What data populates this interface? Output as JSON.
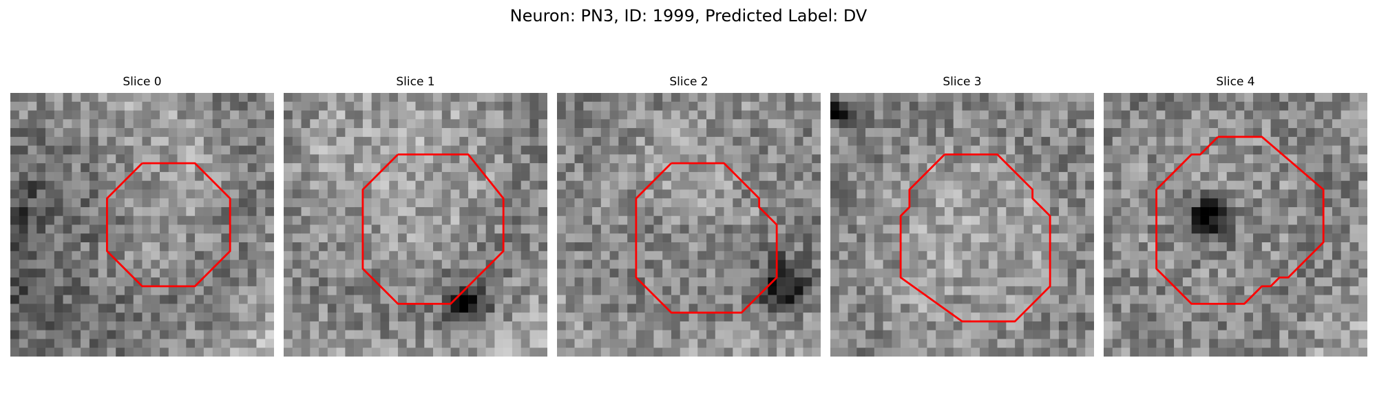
{
  "figure": {
    "title": "Neuron: PN3, ID: 1999, Predicted Label: DV"
  },
  "outline_color": "#ff0000",
  "slices": [
    {
      "label": "Slice 0"
    },
    {
      "label": "Slice 1"
    },
    {
      "label": "Slice 2"
    },
    {
      "label": "Slice 3"
    },
    {
      "label": "Slice 4"
    }
  ]
}
